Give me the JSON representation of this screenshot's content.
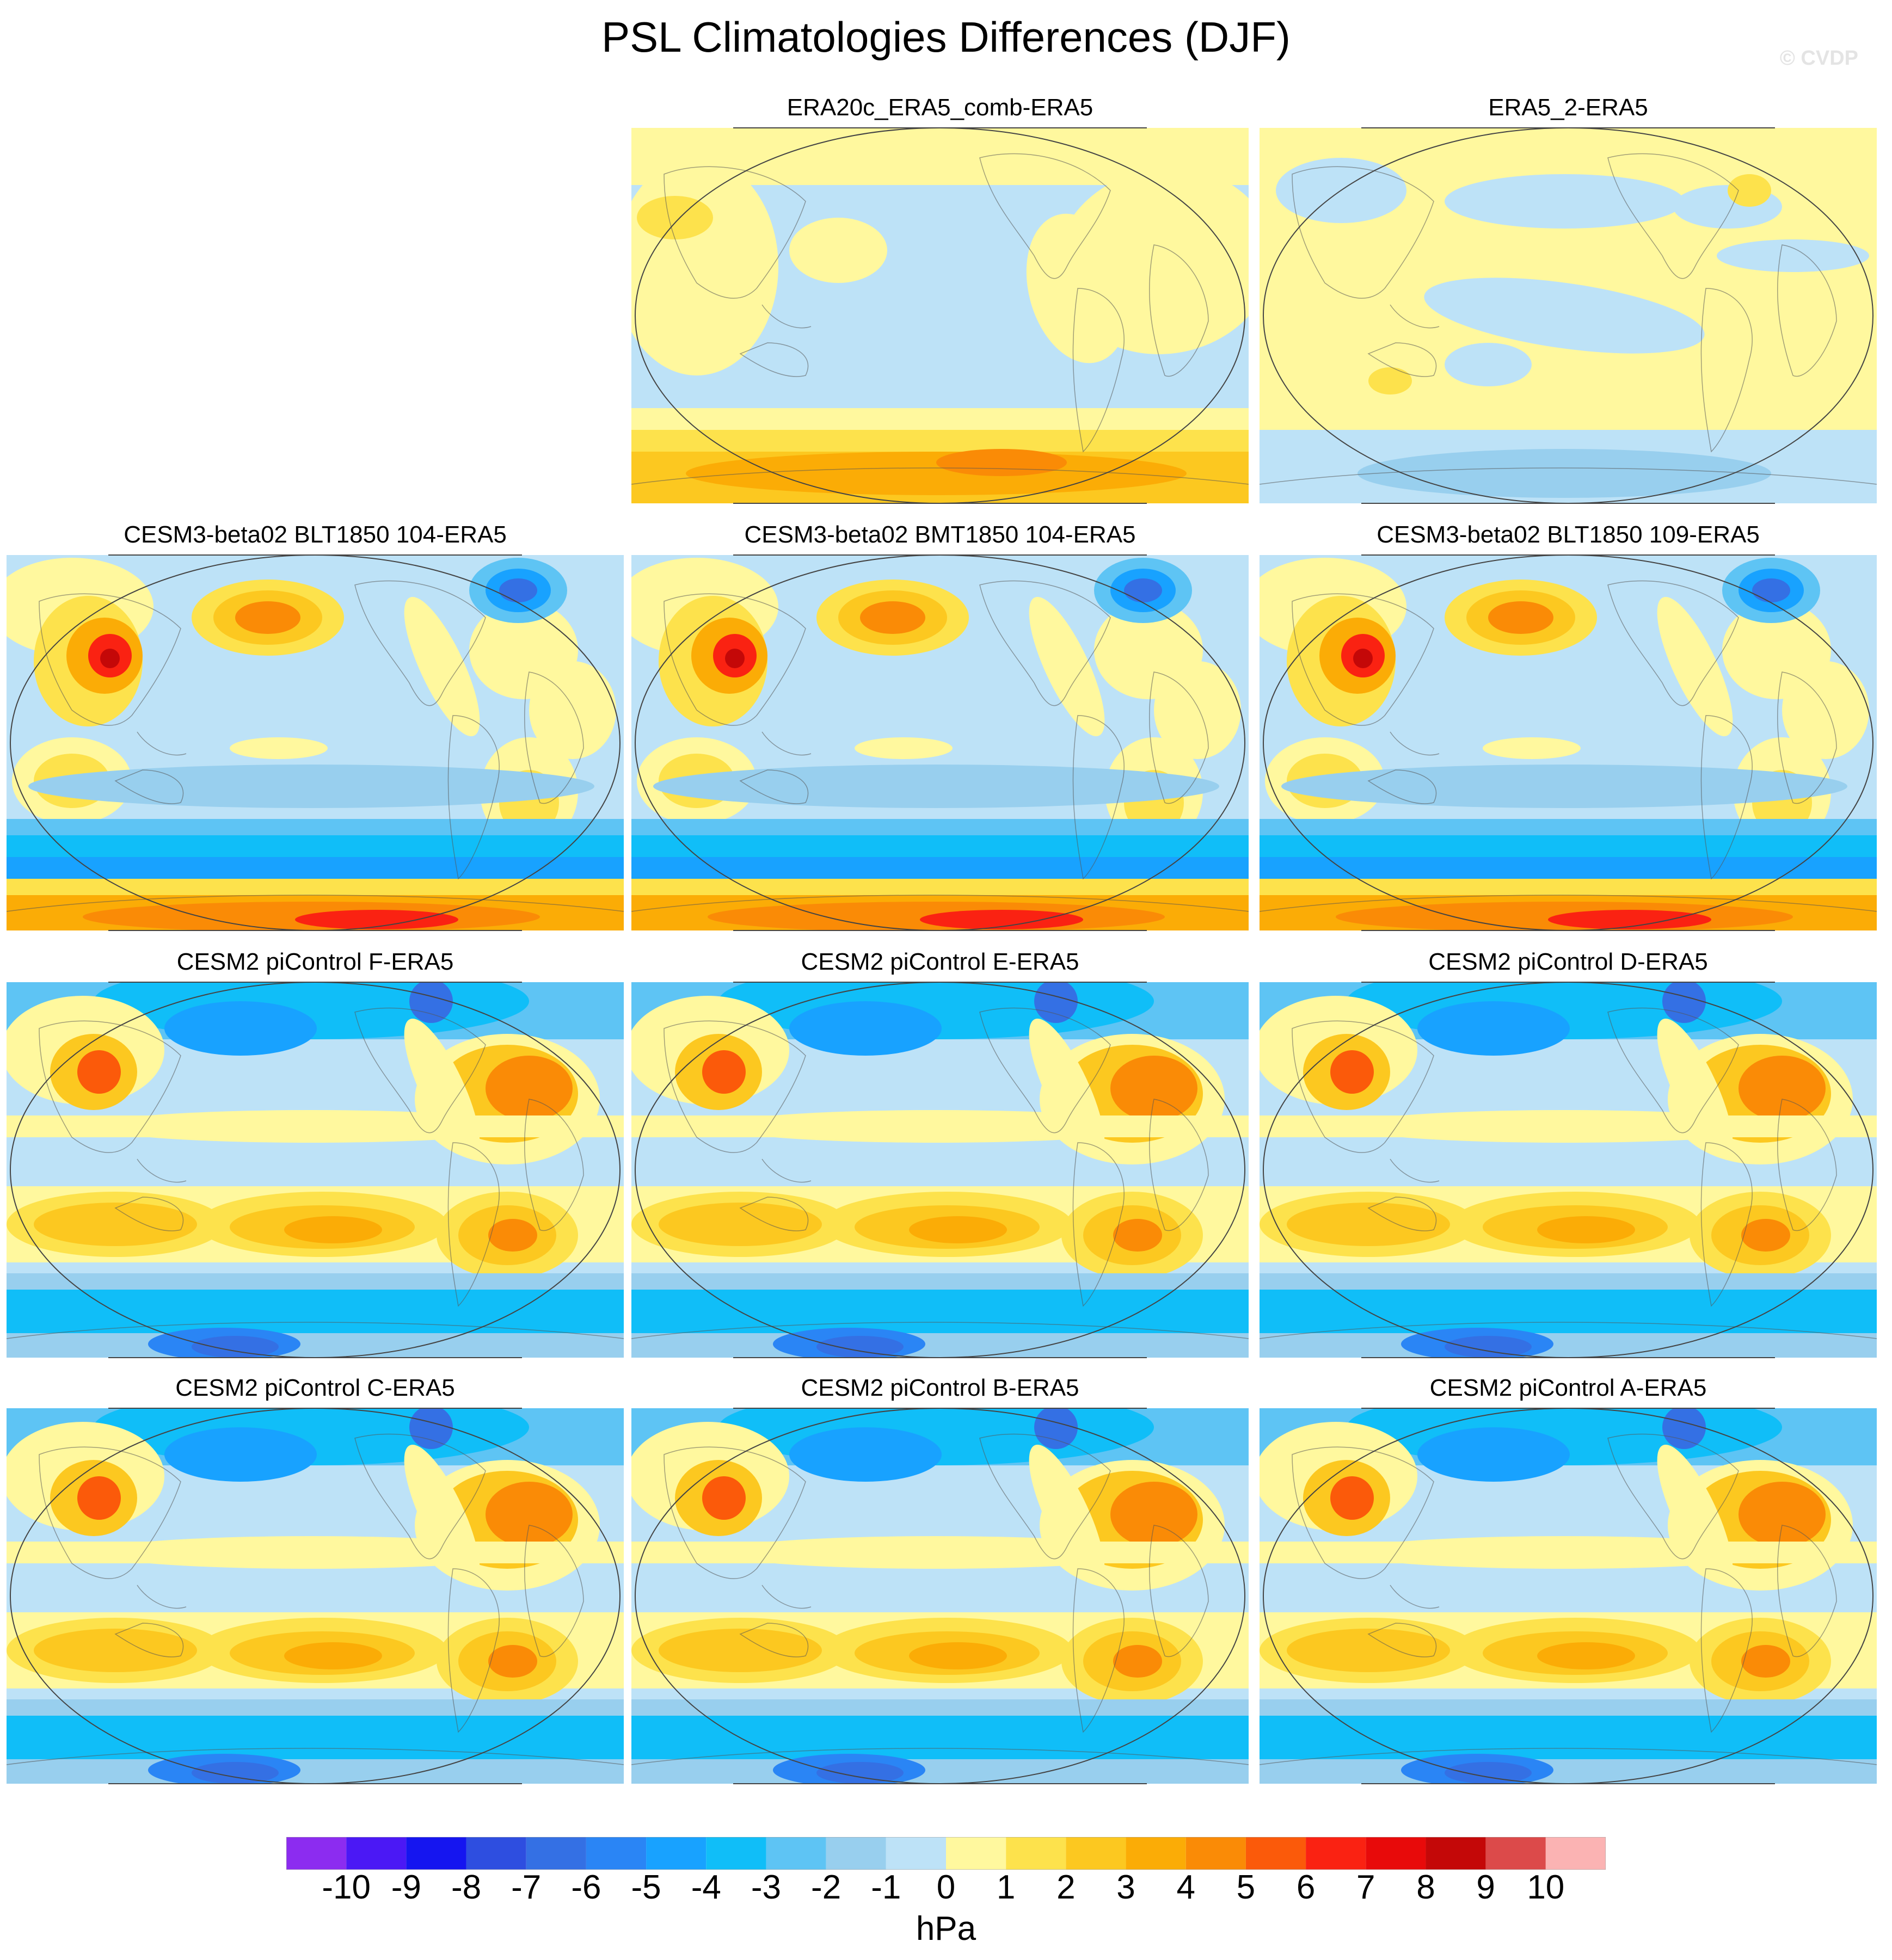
{
  "title": "PSL Climatologies Differences (DJF)",
  "watermark": "© CVDP",
  "units": "hPa",
  "legend": {
    "labels": [
      "-10",
      "-9",
      "-8",
      "-7",
      "-6",
      "-5",
      "-4",
      "-3",
      "-2",
      "-1",
      "0",
      "1",
      "2",
      "3",
      "4",
      "5",
      "6",
      "7",
      "8",
      "9",
      "10"
    ],
    "colors": [
      "#8c2cf0",
      "#4b18f5",
      "#1515f0",
      "#2e4ee0",
      "#3470e4",
      "#2a85f5",
      "#18a2ff",
      "#10bef8",
      "#5ec4f4",
      "#98cfee",
      "#bde2f7",
      "#fff89e",
      "#fde24c",
      "#fcc820",
      "#fbac06",
      "#fa8b06",
      "#fb5a0a",
      "#fa2212",
      "#e80a0a",
      "#c40808",
      "#dc4a4a",
      "#fbb3b3"
    ]
  },
  "panels": [
    {
      "title": "ERA20c_ERA5_comb-ERA5",
      "pattern": "era20c"
    },
    {
      "title": "ERA5_2-ERA5",
      "pattern": "era5_2"
    },
    {
      "title": "CESM3-beta02 BLT1850 104-ERA5",
      "pattern": "cesm3"
    },
    {
      "title": "CESM3-beta02 BMT1850 104-ERA5",
      "pattern": "cesm3"
    },
    {
      "title": "CESM3-beta02 BLT1850 109-ERA5",
      "pattern": "cesm3"
    },
    {
      "title": "CESM2 piControl F-ERA5",
      "pattern": "cesm2"
    },
    {
      "title": "CESM2 piControl E-ERA5",
      "pattern": "cesm2"
    },
    {
      "title": "CESM2 piControl D-ERA5",
      "pattern": "cesm2"
    },
    {
      "title": "CESM2 piControl C-ERA5",
      "pattern": "cesm2"
    },
    {
      "title": "CESM2 piControl B-ERA5",
      "pattern": "cesm2"
    },
    {
      "title": "CESM2 piControl A-ERA5",
      "pattern": "cesm2"
    }
  ]
}
